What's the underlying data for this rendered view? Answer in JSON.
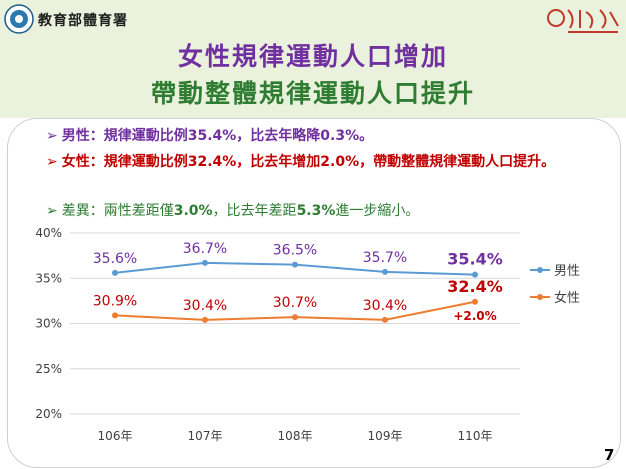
{
  "header": {
    "agency": "教育部體育署",
    "title_line1": "女性規律運動人口增加",
    "title_line2": "帶動整體規律運動人口提升"
  },
  "bullets": {
    "b1": {
      "arrow": "➢",
      "text": "男性：規律運動比例35.4%，比去年略降0.3%。"
    },
    "b2": {
      "arrow": "➢",
      "text": "女性：規律運動比例32.4%，比去年增加2.0%，帶動整體規律運動人口提升。"
    },
    "b3": {
      "arrow": "➢",
      "pre": "差異：兩性差距僅",
      "num1": "3.0%",
      "mid": "，比去年差距",
      "num2": "5.3%",
      "post": "進一步縮小。"
    }
  },
  "colors": {
    "male": "#5b9bd5",
    "female": "#ed7d31",
    "male_label": "#7030a0",
    "female_label": "#c00000"
  },
  "chart_data": {
    "type": "line",
    "categories": [
      "106年",
      "107年",
      "108年",
      "109年",
      "110年"
    ],
    "series": [
      {
        "name": "男性",
        "values": [
          35.6,
          36.7,
          36.5,
          35.7,
          35.4
        ],
        "labels": [
          "35.6%",
          "36.7%",
          "36.5%",
          "35.7%",
          "35.4%"
        ]
      },
      {
        "name": "女性",
        "values": [
          30.9,
          30.4,
          30.7,
          30.4,
          32.4
        ],
        "labels": [
          "30.9%",
          "30.4%",
          "30.7%",
          "30.4%",
          "32.4%"
        ]
      }
    ],
    "annotation": "+2.0%",
    "yticks": [
      "40%",
      "35%",
      "30%",
      "25%",
      "20%"
    ],
    "ylim": [
      20,
      40
    ],
    "legend_position": "right"
  },
  "page_number": "7"
}
